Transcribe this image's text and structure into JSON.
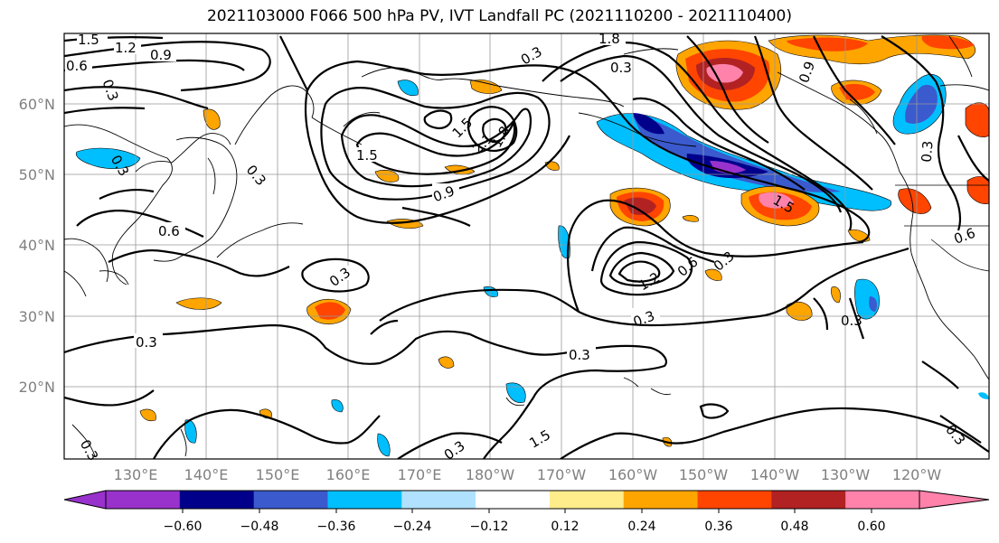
{
  "title": "2021103000 F066 500 hPa PV, IVT Landfall PC (2021110200 - 2021110400)",
  "map": {
    "lat_labels": [
      "60°N",
      "50°N",
      "40°N",
      "30°N",
      "20°N"
    ],
    "lon_labels": [
      "130°E",
      "140°E",
      "150°E",
      "160°E",
      "170°E",
      "180°W",
      "170°W",
      "160°W",
      "150°W",
      "140°W",
      "130°W",
      "120°W"
    ],
    "contour_labels": [
      "1.5",
      "1.2",
      "0.9",
      "0.6",
      "0.3",
      "1.8",
      "0.3",
      "0.3",
      "0.9",
      "1.5",
      "1.5",
      "2.1",
      "1.8",
      "0.9",
      "0.6",
      "0.3",
      "0.3",
      "0.3",
      "0.3",
      "0.3",
      "1.5",
      "1.2",
      "0.6",
      "0.3",
      "0.3",
      "1.5",
      "0.6",
      "0.3",
      "0.3",
      "0.3",
      "0.3",
      "0.3"
    ]
  },
  "colorbar": {
    "tick_labels": [
      "−0.60",
      "−0.48",
      "−0.36",
      "−0.24",
      "−0.12",
      "0.12",
      "0.24",
      "0.36",
      "0.48",
      "0.60"
    ],
    "colors": [
      "#9932cc",
      "#00008b",
      "#3a5acd",
      "#00bfff",
      "#b0e2ff",
      "#ffffff",
      "#ffec8b",
      "#ffa500",
      "#ff4500",
      "#b22222",
      "#ff82ab"
    ]
  }
}
